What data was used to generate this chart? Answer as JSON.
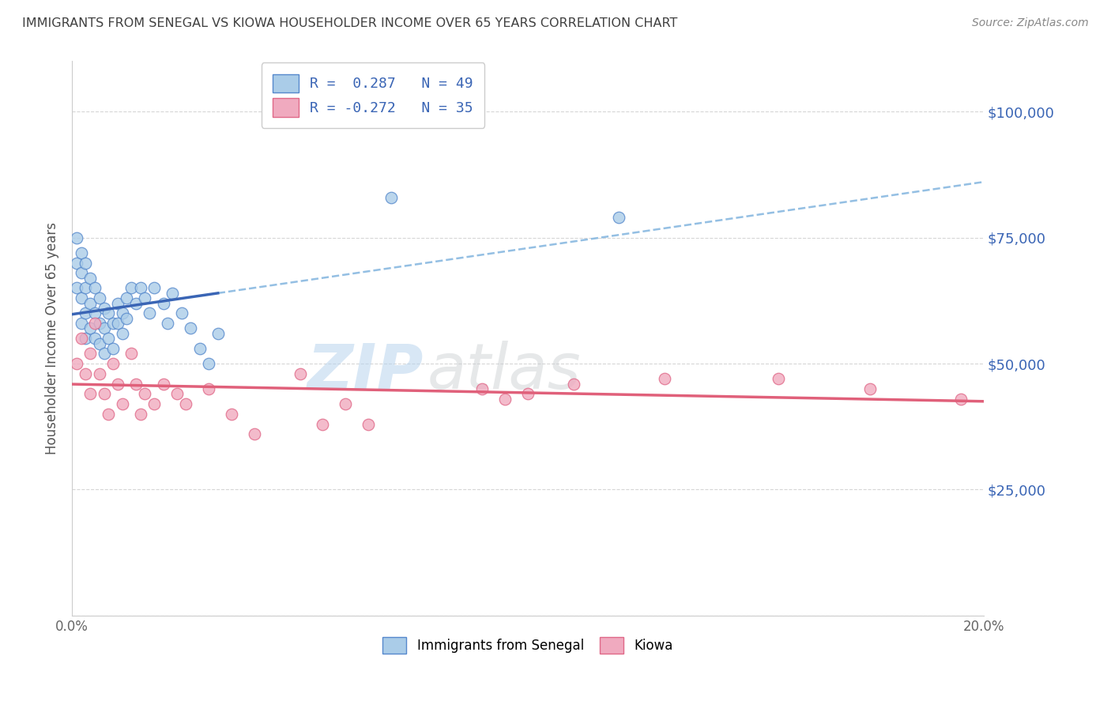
{
  "title": "IMMIGRANTS FROM SENEGAL VS KIOWA HOUSEHOLDER INCOME OVER 65 YEARS CORRELATION CHART",
  "source": "Source: ZipAtlas.com",
  "ylabel": "Householder Income Over 65 years",
  "xmin": 0.0,
  "xmax": 0.2,
  "ymin": 0,
  "ymax": 110000,
  "yticks": [
    0,
    25000,
    50000,
    75000,
    100000
  ],
  "watermark_zip": "ZIP",
  "watermark_atlas": "atlas",
  "blue_scatter_x": [
    0.001,
    0.001,
    0.001,
    0.002,
    0.002,
    0.002,
    0.002,
    0.003,
    0.003,
    0.003,
    0.003,
    0.004,
    0.004,
    0.004,
    0.005,
    0.005,
    0.005,
    0.006,
    0.006,
    0.006,
    0.007,
    0.007,
    0.007,
    0.008,
    0.008,
    0.009,
    0.009,
    0.01,
    0.01,
    0.011,
    0.011,
    0.012,
    0.012,
    0.013,
    0.014,
    0.015,
    0.016,
    0.017,
    0.018,
    0.02,
    0.021,
    0.022,
    0.024,
    0.026,
    0.028,
    0.03,
    0.032,
    0.07,
    0.12
  ],
  "blue_scatter_y": [
    75000,
    70000,
    65000,
    72000,
    68000,
    63000,
    58000,
    70000,
    65000,
    60000,
    55000,
    67000,
    62000,
    57000,
    65000,
    60000,
    55000,
    63000,
    58000,
    54000,
    61000,
    57000,
    52000,
    60000,
    55000,
    58000,
    53000,
    62000,
    58000,
    60000,
    56000,
    63000,
    59000,
    65000,
    62000,
    65000,
    63000,
    60000,
    65000,
    62000,
    58000,
    64000,
    60000,
    57000,
    53000,
    50000,
    56000,
    83000,
    79000
  ],
  "pink_scatter_x": [
    0.001,
    0.002,
    0.003,
    0.004,
    0.004,
    0.005,
    0.006,
    0.007,
    0.008,
    0.009,
    0.01,
    0.011,
    0.013,
    0.014,
    0.015,
    0.016,
    0.018,
    0.02,
    0.023,
    0.025,
    0.03,
    0.035,
    0.04,
    0.05,
    0.055,
    0.06,
    0.065,
    0.09,
    0.095,
    0.1,
    0.11,
    0.13,
    0.155,
    0.175,
    0.195
  ],
  "pink_scatter_y": [
    50000,
    55000,
    48000,
    52000,
    44000,
    58000,
    48000,
    44000,
    40000,
    50000,
    46000,
    42000,
    52000,
    46000,
    40000,
    44000,
    42000,
    46000,
    44000,
    42000,
    45000,
    40000,
    36000,
    48000,
    38000,
    42000,
    38000,
    45000,
    43000,
    44000,
    46000,
    47000,
    47000,
    45000,
    43000
  ],
  "blue_line_color": "#3a65b5",
  "pink_line_color": "#e0607a",
  "blue_dash_color": "#88b8e0",
  "blue_marker_facecolor": "#aacce8",
  "blue_marker_edgecolor": "#5588cc",
  "pink_marker_facecolor": "#f0aabf",
  "pink_marker_edgecolor": "#e06888",
  "background_color": "#ffffff",
  "grid_color": "#cccccc",
  "title_color": "#404040",
  "right_label_color": "#3a65b5",
  "source_color": "#888888"
}
